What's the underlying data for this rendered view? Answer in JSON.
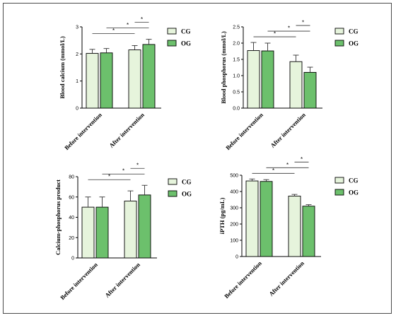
{
  "colors": {
    "CG": "#e6f4dc",
    "OG": "#6cc06c",
    "axis": "#000000"
  },
  "chart_data": [
    {
      "type": "bar",
      "ylabel": "Blood calcium (mmol/L)",
      "categories": [
        "Before intervention",
        "After intervention"
      ],
      "series": [
        {
          "name": "CG",
          "values": [
            2.02,
            2.15
          ],
          "errors": [
            0.15,
            0.16
          ]
        },
        {
          "name": "OG",
          "values": [
            2.04,
            2.35
          ],
          "errors": [
            0.16,
            0.19
          ]
        }
      ],
      "ylim": [
        0,
        3
      ],
      "yticks": [
        "0",
        "1",
        "2",
        "3"
      ],
      "ytick_values": [
        0,
        1,
        2,
        3
      ],
      "significance": [
        {
          "from": [
            1,
            0
          ],
          "to": [
            1,
            1
          ],
          "label": "*"
        },
        {
          "from": [
            0,
            0
          ],
          "to": [
            1,
            0
          ],
          "label": "*"
        },
        {
          "from": [
            0,
            1
          ],
          "to": [
            1,
            1
          ],
          "label": "*"
        }
      ],
      "legend": "right"
    },
    {
      "type": "bar",
      "ylabel": "Blood phosphorus (mmol/L)",
      "categories": [
        "Before intervention",
        "After intervention"
      ],
      "series": [
        {
          "name": "CG",
          "values": [
            1.77,
            1.43
          ],
          "errors": [
            0.25,
            0.2
          ]
        },
        {
          "name": "OG",
          "values": [
            1.76,
            1.1
          ],
          "errors": [
            0.24,
            0.16
          ]
        }
      ],
      "ylim": [
        0,
        2.5
      ],
      "yticks": [
        "0.0",
        "0.5",
        "1.0",
        "1.5",
        "2.0",
        "2.5"
      ],
      "ytick_values": [
        0,
        0.5,
        1.0,
        1.5,
        2.0,
        2.5
      ],
      "significance": [
        {
          "from": [
            1,
            0
          ],
          "to": [
            1,
            1
          ],
          "label": "*"
        },
        {
          "from": [
            0,
            0
          ],
          "to": [
            1,
            0
          ],
          "label": "*"
        },
        {
          "from": [
            0,
            1
          ],
          "to": [
            1,
            1
          ],
          "label": "*"
        }
      ],
      "legend": "right"
    },
    {
      "type": "bar",
      "ylabel": "Calcium-phosphorus product",
      "categories": [
        "Before intervention",
        "After intervention"
      ],
      "series": [
        {
          "name": "CG",
          "values": [
            50,
            56
          ],
          "errors": [
            10,
            10
          ]
        },
        {
          "name": "OG",
          "values": [
            50,
            62
          ],
          "errors": [
            10,
            9.5
          ]
        }
      ],
      "ylim": [
        0,
        80
      ],
      "yticks": [
        "0",
        "20",
        "40",
        "60",
        "80"
      ],
      "ytick_values": [
        0,
        20,
        40,
        60,
        80
      ],
      "significance": [
        {
          "from": [
            1,
            0
          ],
          "to": [
            1,
            1
          ],
          "label": "*"
        },
        {
          "from": [
            0,
            0
          ],
          "to": [
            1,
            0
          ],
          "label": "*"
        },
        {
          "from": [
            0,
            1
          ],
          "to": [
            1,
            1
          ],
          "label": "*"
        }
      ],
      "legend": "right"
    },
    {
      "type": "bar",
      "ylabel": "iPTH (pg/mL)",
      "categories": [
        "Before intervention",
        "After intervention"
      ],
      "series": [
        {
          "name": "CG",
          "values": [
            465,
            372
          ],
          "errors": [
            12,
            10
          ]
        },
        {
          "name": "OG",
          "values": [
            462,
            310
          ],
          "errors": [
            11,
            9
          ]
        }
      ],
      "ylim": [
        0,
        500
      ],
      "yticks": [
        "0",
        "100",
        "200",
        "300",
        "400",
        "500"
      ],
      "ytick_values": [
        0,
        100,
        200,
        300,
        400,
        500
      ],
      "significance": [
        {
          "from": [
            1,
            0
          ],
          "to": [
            1,
            1
          ],
          "label": "*"
        },
        {
          "from": [
            0,
            0
          ],
          "to": [
            1,
            0
          ],
          "label": "*"
        },
        {
          "from": [
            0,
            1
          ],
          "to": [
            1,
            1
          ],
          "label": "*"
        }
      ],
      "legend": "right"
    }
  ]
}
